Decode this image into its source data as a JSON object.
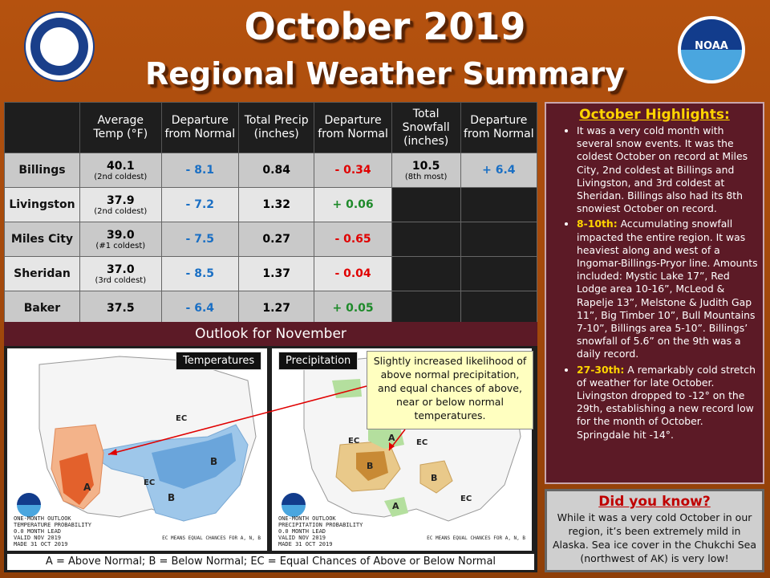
{
  "header": {
    "title_line1": "October 2019",
    "title_line2": "Regional Weather Summary",
    "left_logo": "nws-logo",
    "right_logo": "noaa-logo",
    "right_logo_text": "NOAA"
  },
  "table": {
    "headers": [
      "Average Temp (°F)",
      "Departure from Normal",
      "Total Precip (inches)",
      "Departure from Normal",
      "Total Snowfall (inches)",
      "Departure from Normal"
    ],
    "rows": [
      {
        "city": "Billings",
        "temp": "40.1",
        "temp_note": "(2nd coldest)",
        "temp_dep": "- 8.1",
        "precip": "0.84",
        "precip_dep": "- 0.34",
        "snow": "10.5",
        "snow_note": "(8th most)",
        "snow_dep": "+ 6.4"
      },
      {
        "city": "Livingston",
        "temp": "37.9",
        "temp_note": "(2nd coldest)",
        "temp_dep": "- 7.2",
        "precip": "1.32",
        "precip_dep": "+ 0.06",
        "snow": "",
        "snow_note": "",
        "snow_dep": ""
      },
      {
        "city": "Miles City",
        "temp": "39.0",
        "temp_note": "(#1 coldest)",
        "temp_dep": "- 7.5",
        "precip": "0.27",
        "precip_dep": "- 0.65",
        "snow": "",
        "snow_note": "",
        "snow_dep": ""
      },
      {
        "city": "Sheridan",
        "temp": "37.0",
        "temp_note": "(3rd coldest)",
        "temp_dep": "- 8.5",
        "precip": "1.37",
        "precip_dep": "- 0.04",
        "snow": "",
        "snow_note": "",
        "snow_dep": ""
      },
      {
        "city": "Baker",
        "temp": "37.5",
        "temp_note": "",
        "temp_dep": "- 6.4",
        "precip": "1.27",
        "precip_dep": "+ 0.05",
        "snow": "",
        "snow_note": "",
        "snow_dep": ""
      }
    ]
  },
  "highlights": {
    "title": "October Highlights:",
    "item1": "It was a very cold month with several snow events. It was the coldest October on record at Miles City, 2nd coldest at Billings and Livingston, and 3rd coldest at Sheridan. Billings also had its 8th snowiest October on record.",
    "item2_label": "8-10th:",
    "item2": "Accumulating snowfall impacted the entire region. It was heaviest along and west of a Ingomar-Billings-Pryor line. Amounts included: Mystic Lake 17”, Red Lodge area 10-16”, McLeod & Rapelje 13”, Melstone & Judith Gap 11”, Big Timber 10”, Bull Mountains 7-10”, Billings area 5-10”. Billings’ snowfall of 5.6” on the 9th was a daily record.",
    "item3_label": "27-30th:",
    "item3": "A remarkably cold stretch of weather for late October. Livingston dropped to -12° on the 29th, establishing a new record low for the month of October. Springdale hit -14°."
  },
  "did_you_know": {
    "title": "Did you know?",
    "text": "While it was a very cold October in our region, it’s been extremely mild in Alaska. Sea ice cover in the Chukchi Sea (northwest of AK) is very low!"
  },
  "outlook": {
    "title": "Outlook for November",
    "temp_label": "Temperatures",
    "precip_label": "Precipitation",
    "callout": "Slightly increased likelihood of above normal precipitation, and equal chances of above, near or below normal temperatures.",
    "temp_note": "ONE-MONTH OUTLOOK\nTEMPERATURE PROBABILITY\n0.0 MONTH LEAD\nVALID NOV 2019\nMADE 31 OCT 2019",
    "precip_note": "ONE-MONTH OUTLOOK\nPRECIPITATION PROBABILITY\n0.0 MONTH LEAD\nVALID NOV 2019\nMADE 31 OCT 2019",
    "ec_note": "EC MEANS EQUAL CHANCES FOR A, N, B",
    "legend": "A = Above Normal;  B = Below Normal;  EC = Equal Chances of Above or Below Normal"
  }
}
